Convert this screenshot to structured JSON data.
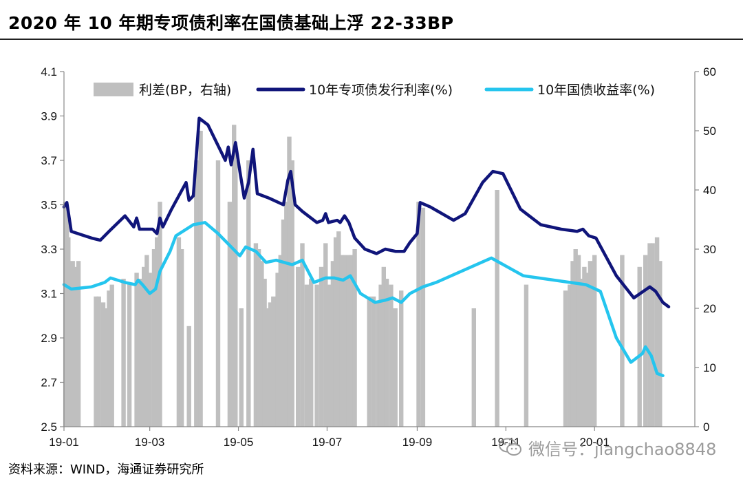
{
  "title": "2020 年 10 年期专项债利率在国债基础上浮 22-33BP",
  "source": "资料来源：WIND，海通证券研究所",
  "watermark": "微信号：jiangchao8848",
  "watermark_icon": "wechat-icon",
  "colors": {
    "spread": "#bfbfbf",
    "special_bond": "#10157a",
    "treasury": "#25c5ee"
  },
  "chart_data": {
    "type": "bar+line",
    "x_tick_labels": [
      "19-01",
      "19-03",
      "19-05",
      "19-07",
      "19-09",
      "19-11",
      "20-01"
    ],
    "x_tick_dates": [
      "2019-01-01",
      "2019-03-01",
      "2019-05-01",
      "2019-07-01",
      "2019-09-01",
      "2019-11-01",
      "2020-01-01"
    ],
    "x_range": [
      "2019-01-01",
      "2020-03-10"
    ],
    "y_left": {
      "range": [
        2.5,
        4.1
      ],
      "ticks": [
        "2.5",
        "2.7",
        "2.9",
        "3.1",
        "3.3",
        "3.5",
        "3.7",
        "3.9",
        "4.1"
      ]
    },
    "y_right": {
      "range": [
        0,
        60
      ],
      "ticks": [
        "0",
        "10",
        "20",
        "30",
        "40",
        "50",
        "60"
      ]
    },
    "legend": {
      "position": "top",
      "items": [
        {
          "label": "利差(BP，右轴)",
          "type": "bar",
          "color": "#bfbfbf"
        },
        {
          "label": "10年专项债发行利率(%)",
          "type": "line",
          "color": "#10157a"
        },
        {
          "label": "10年国债收益率(%)",
          "type": "line",
          "color": "#25c5ee"
        }
      ]
    },
    "series": [
      {
        "name": "利差(BP，右轴)",
        "axis": "right",
        "type": "bar",
        "points": [
          [
            "2019-01-02",
            38
          ],
          [
            "2019-01-03",
            35
          ],
          [
            "2019-01-04",
            32
          ],
          [
            "2019-01-07",
            28
          ],
          [
            "2019-01-09",
            27
          ],
          [
            "2019-01-11",
            28
          ],
          [
            "2019-01-23",
            22
          ],
          [
            "2019-01-25",
            22
          ],
          [
            "2019-01-28",
            21
          ],
          [
            "2019-01-30",
            20
          ],
          [
            "2019-02-01",
            23
          ],
          [
            "2019-02-03",
            24
          ],
          [
            "2019-02-11",
            25
          ],
          [
            "2019-02-15",
            24
          ],
          [
            "2019-02-20",
            26
          ],
          [
            "2019-02-22",
            25
          ],
          [
            "2019-02-25",
            27
          ],
          [
            "2019-02-27",
            29
          ],
          [
            "2019-03-01",
            26
          ],
          [
            "2019-03-04",
            30
          ],
          [
            "2019-03-06",
            32
          ],
          [
            "2019-03-08",
            38
          ],
          [
            "2019-03-21",
            32
          ],
          [
            "2019-03-23",
            30
          ],
          [
            "2019-03-28",
            17
          ],
          [
            "2019-04-02",
            45
          ],
          [
            "2019-04-05",
            50
          ],
          [
            "2019-04-17",
            45
          ],
          [
            "2019-04-25",
            38
          ],
          [
            "2019-04-28",
            51
          ],
          [
            "2019-04-29",
            45
          ],
          [
            "2019-05-03",
            20
          ],
          [
            "2019-05-08",
            45
          ],
          [
            "2019-05-13",
            31
          ],
          [
            "2019-05-15",
            30
          ],
          [
            "2019-05-17",
            28
          ],
          [
            "2019-05-19",
            25
          ],
          [
            "2019-05-21",
            20
          ],
          [
            "2019-05-23",
            21
          ],
          [
            "2019-05-25",
            22
          ],
          [
            "2019-05-28",
            26
          ],
          [
            "2019-05-30",
            29
          ],
          [
            "2019-06-01",
            35
          ],
          [
            "2019-06-03",
            38
          ],
          [
            "2019-06-05",
            49
          ],
          [
            "2019-06-07",
            45
          ],
          [
            "2019-06-11",
            27
          ],
          [
            "2019-06-14",
            31
          ],
          [
            "2019-06-17",
            24
          ],
          [
            "2019-06-20",
            25
          ],
          [
            "2019-06-24",
            24
          ],
          [
            "2019-06-27",
            27
          ],
          [
            "2019-06-30",
            31
          ],
          [
            "2019-07-03",
            24
          ],
          [
            "2019-07-05",
            28
          ],
          [
            "2019-07-07",
            32
          ],
          [
            "2019-07-09",
            33
          ],
          [
            "2019-07-11",
            29
          ],
          [
            "2019-07-13",
            29
          ],
          [
            "2019-07-16",
            29
          ],
          [
            "2019-07-18",
            29
          ],
          [
            "2019-07-20",
            30
          ],
          [
            "2019-07-30",
            22
          ],
          [
            "2019-08-02",
            22
          ],
          [
            "2019-08-05",
            21
          ],
          [
            "2019-08-07",
            24
          ],
          [
            "2019-08-09",
            27
          ],
          [
            "2019-08-11",
            25
          ],
          [
            "2019-08-14",
            24
          ],
          [
            "2019-08-17",
            20
          ],
          [
            "2019-08-21",
            23
          ],
          [
            "2019-09-02",
            38
          ],
          [
            "2019-09-05",
            37
          ],
          [
            "2019-10-10",
            20
          ],
          [
            "2019-10-26",
            40
          ],
          [
            "2019-11-15",
            24
          ],
          [
            "2019-12-12",
            23
          ],
          [
            "2019-12-15",
            24
          ],
          [
            "2019-12-17",
            28
          ],
          [
            "2019-12-19",
            30
          ],
          [
            "2019-12-21",
            29
          ],
          [
            "2019-12-23",
            25
          ],
          [
            "2019-12-25",
            27
          ],
          [
            "2019-12-27",
            26
          ],
          [
            "2019-12-29",
            28
          ],
          [
            "2020-01-01",
            29
          ],
          [
            "2020-01-20",
            29
          ],
          [
            "2020-02-01",
            27
          ],
          [
            "2020-02-05",
            29
          ],
          [
            "2020-02-08",
            31
          ],
          [
            "2020-02-10",
            31
          ],
          [
            "2020-02-13",
            32
          ],
          [
            "2020-02-15",
            28
          ]
        ]
      },
      {
        "name": "10年专项债发行利率(%)",
        "axis": "left",
        "type": "line",
        "points": [
          [
            "2019-01-01",
            3.49
          ],
          [
            "2019-01-03",
            3.51
          ],
          [
            "2019-01-06",
            3.38
          ],
          [
            "2019-01-20",
            3.35
          ],
          [
            "2019-01-26",
            3.34
          ],
          [
            "2019-02-01",
            3.38
          ],
          [
            "2019-02-12",
            3.45
          ],
          [
            "2019-02-18",
            3.4
          ],
          [
            "2019-02-20",
            3.44
          ],
          [
            "2019-02-22",
            3.39
          ],
          [
            "2019-03-03",
            3.39
          ],
          [
            "2019-03-06",
            3.37
          ],
          [
            "2019-03-08",
            3.44
          ],
          [
            "2019-03-10",
            3.4
          ],
          [
            "2019-03-16",
            3.48
          ],
          [
            "2019-03-26",
            3.6
          ],
          [
            "2019-03-28",
            3.52
          ],
          [
            "2019-03-31",
            3.54
          ],
          [
            "2019-04-04",
            3.89
          ],
          [
            "2019-04-10",
            3.86
          ],
          [
            "2019-04-22",
            3.7
          ],
          [
            "2019-04-24",
            3.76
          ],
          [
            "2019-04-26",
            3.68
          ],
          [
            "2019-04-29",
            3.78
          ],
          [
            "2019-05-02",
            3.65
          ],
          [
            "2019-05-05",
            3.53
          ],
          [
            "2019-05-08",
            3.6
          ],
          [
            "2019-05-11",
            3.75
          ],
          [
            "2019-05-14",
            3.55
          ],
          [
            "2019-05-22",
            3.53
          ],
          [
            "2019-06-01",
            3.5
          ],
          [
            "2019-06-04",
            3.61
          ],
          [
            "2019-06-06",
            3.65
          ],
          [
            "2019-06-09",
            3.5
          ],
          [
            "2019-06-14",
            3.47
          ],
          [
            "2019-06-24",
            3.42
          ],
          [
            "2019-06-28",
            3.43
          ],
          [
            "2019-06-30",
            3.46
          ],
          [
            "2019-07-02",
            3.42
          ],
          [
            "2019-07-08",
            3.43
          ],
          [
            "2019-07-10",
            3.42
          ],
          [
            "2019-07-13",
            3.45
          ],
          [
            "2019-07-16",
            3.42
          ],
          [
            "2019-07-20",
            3.35
          ],
          [
            "2019-07-27",
            3.3
          ],
          [
            "2019-08-04",
            3.28
          ],
          [
            "2019-08-10",
            3.3
          ],
          [
            "2019-08-17",
            3.29
          ],
          [
            "2019-08-23",
            3.29
          ],
          [
            "2019-08-27",
            3.33
          ],
          [
            "2019-09-01",
            3.37
          ],
          [
            "2019-09-03",
            3.51
          ],
          [
            "2019-09-10",
            3.49
          ],
          [
            "2019-09-26",
            3.43
          ],
          [
            "2019-10-04",
            3.46
          ],
          [
            "2019-10-16",
            3.6
          ],
          [
            "2019-10-23",
            3.65
          ],
          [
            "2019-10-30",
            3.64
          ],
          [
            "2019-11-11",
            3.48
          ],
          [
            "2019-11-25",
            3.41
          ],
          [
            "2019-12-09",
            3.39
          ],
          [
            "2019-12-20",
            3.38
          ],
          [
            "2019-12-24",
            3.39
          ],
          [
            "2019-12-28",
            3.36
          ],
          [
            "2020-01-02",
            3.35
          ],
          [
            "2020-01-16",
            3.18
          ],
          [
            "2020-01-28",
            3.08
          ],
          [
            "2020-02-08",
            3.13
          ],
          [
            "2020-02-12",
            3.11
          ],
          [
            "2020-02-17",
            3.06
          ],
          [
            "2020-02-21",
            3.04
          ]
        ]
      },
      {
        "name": "10年国债收益率(%)",
        "axis": "left",
        "type": "line",
        "points": [
          [
            "2019-01-01",
            3.14
          ],
          [
            "2019-01-06",
            3.12
          ],
          [
            "2019-01-20",
            3.13
          ],
          [
            "2019-01-29",
            3.15
          ],
          [
            "2019-02-02",
            3.17
          ],
          [
            "2019-02-12",
            3.15
          ],
          [
            "2019-02-19",
            3.14
          ],
          [
            "2019-02-21",
            3.16
          ],
          [
            "2019-02-24",
            3.14
          ],
          [
            "2019-03-01",
            3.1
          ],
          [
            "2019-03-05",
            3.12
          ],
          [
            "2019-03-08",
            3.2
          ],
          [
            "2019-03-15",
            3.29
          ],
          [
            "2019-03-19",
            3.36
          ],
          [
            "2019-03-31",
            3.41
          ],
          [
            "2019-04-08",
            3.42
          ],
          [
            "2019-04-17",
            3.37
          ],
          [
            "2019-05-02",
            3.27
          ],
          [
            "2019-05-06",
            3.31
          ],
          [
            "2019-05-13",
            3.29
          ],
          [
            "2019-05-20",
            3.24
          ],
          [
            "2019-05-27",
            3.25
          ],
          [
            "2019-06-07",
            3.23
          ],
          [
            "2019-06-14",
            3.25
          ],
          [
            "2019-06-22",
            3.15
          ],
          [
            "2019-06-30",
            3.17
          ],
          [
            "2019-07-06",
            3.17
          ],
          [
            "2019-07-12",
            3.16
          ],
          [
            "2019-07-17",
            3.18
          ],
          [
            "2019-07-24",
            3.1
          ],
          [
            "2019-08-03",
            3.06
          ],
          [
            "2019-08-10",
            3.07
          ],
          [
            "2019-08-15",
            3.08
          ],
          [
            "2019-08-21",
            3.06
          ],
          [
            "2019-08-27",
            3.1
          ],
          [
            "2019-09-05",
            3.13
          ],
          [
            "2019-09-14",
            3.15
          ],
          [
            "2019-10-22",
            3.26
          ],
          [
            "2019-11-13",
            3.18
          ],
          [
            "2019-12-26",
            3.14
          ],
          [
            "2020-01-05",
            3.11
          ],
          [
            "2020-01-16",
            2.9
          ],
          [
            "2020-01-26",
            2.79
          ],
          [
            "2020-02-03",
            2.83
          ],
          [
            "2020-02-05",
            2.86
          ],
          [
            "2020-02-09",
            2.82
          ],
          [
            "2020-02-13",
            2.74
          ],
          [
            "2020-02-17",
            2.73
          ]
        ]
      }
    ]
  }
}
